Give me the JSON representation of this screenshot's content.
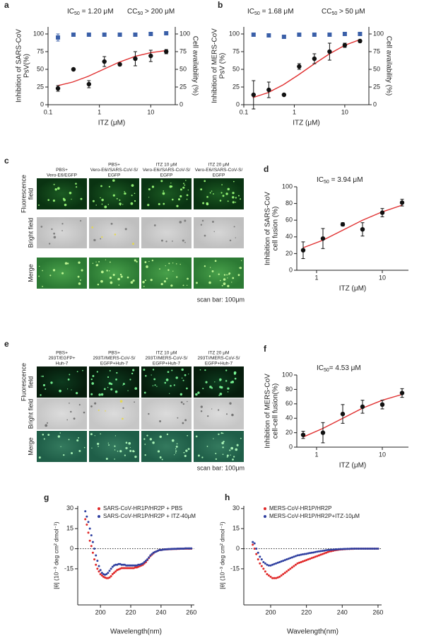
{
  "chart_data": [
    {
      "panel": "a",
      "type": "dose_response",
      "x_scale": "log",
      "annotations": [
        {
          "parts": [
            "IC",
            "50",
            " = 1.20 μM"
          ],
          "color": "#222222"
        },
        {
          "parts": [
            "CC",
            "50",
            " > 200 μM"
          ],
          "color": "#3a5fa8"
        }
      ],
      "xlabel": "ITZ (μM)",
      "ylabel": [
        "Inhibition of SARS-CoV",
        "PsV(%)"
      ],
      "ylabel_color": "#e03030",
      "y2label": [
        "Cell availability (%)"
      ],
      "y2label_color": "#3a5fa8",
      "xlim": [
        0.1,
        30
      ],
      "xticks": [
        0.1,
        1,
        10
      ],
      "ylim": [
        0,
        110
      ],
      "yticks": [
        0,
        25,
        50,
        75,
        100
      ],
      "y2lim": [
        0,
        110
      ],
      "y2ticks": [
        0,
        25,
        50,
        75,
        100
      ],
      "x": [
        0.156,
        0.3125,
        0.625,
        1.25,
        2.5,
        5,
        10,
        20
      ],
      "series": [
        {
          "color": "#111111",
          "marker": "circle",
          "values": [
            23,
            50,
            29,
            61,
            57,
            65,
            69,
            75
          ],
          "errors": [
            4,
            0,
            5,
            7,
            2,
            10,
            8,
            3
          ]
        },
        {
          "color": "#3a5fa8",
          "marker": "square",
          "axis": "y2",
          "values": [
            95,
            99,
            99,
            99,
            99,
            99,
            100,
            101
          ],
          "errors": [
            5,
            0,
            0,
            0,
            0,
            0,
            0,
            0
          ]
        }
      ],
      "fit": {
        "color": "#e03030",
        "x": [
          0.15,
          0.3,
          0.6,
          1.2,
          2.4,
          5,
          10,
          20
        ],
        "values": [
          26.7,
          32,
          40,
          50,
          60,
          68.4,
          73.6,
          76.6
        ]
      }
    },
    {
      "panel": "b",
      "type": "dose_response",
      "x_scale": "log",
      "annotations": [
        {
          "parts": [
            "IC",
            "50",
            " = 1.68 μM"
          ],
          "color": "#222222"
        },
        {
          "parts": [
            "CC",
            "50",
            " > 50 μM"
          ],
          "color": "#3a5fa8"
        }
      ],
      "xlabel": "ITZ (μM)",
      "ylabel": [
        "Inhibition of MERS-CoV",
        "PsV (%)"
      ],
      "ylabel_color": "#e03030",
      "y2label": [
        "Cell availability (%)"
      ],
      "y2label_color": "#3a5fa8",
      "xlim": [
        0.1,
        30
      ],
      "xticks": [
        0.1,
        1,
        10
      ],
      "ylim": [
        0,
        110
      ],
      "yticks": [
        0,
        25,
        50,
        75,
        100
      ],
      "y2lim": [
        0,
        110
      ],
      "y2ticks": [
        0,
        25,
        50,
        75,
        100
      ],
      "x": [
        0.156,
        0.3125,
        0.625,
        1.25,
        2.5,
        5,
        10,
        20
      ],
      "series": [
        {
          "color": "#111111",
          "marker": "circle",
          "values": [
            14,
            21,
            14,
            54,
            65,
            75,
            84,
            90
          ],
          "errors": [
            20,
            11,
            0,
            4,
            7,
            12,
            3,
            2
          ]
        },
        {
          "color": "#3a5fa8",
          "marker": "square",
          "axis": "y2",
          "values": [
            99,
            98,
            96,
            99,
            99,
            99,
            100,
            100
          ],
          "errors": [
            0,
            0,
            0,
            0,
            0,
            0,
            0,
            0
          ]
        }
      ],
      "fit": {
        "color": "#e03030",
        "x": [
          0.15,
          0.3,
          0.6,
          1.2,
          2.4,
          5,
          10,
          20
        ],
        "values": [
          10,
          17,
          28,
          42,
          57,
          72,
          84,
          92
        ]
      }
    },
    {
      "panel": "d",
      "type": "dose_response",
      "x_scale": "log",
      "annotations": [
        {
          "parts": [
            "IC",
            "50",
            " = 3.94 μM"
          ],
          "color": "#222222"
        }
      ],
      "xlabel": "ITZ (μM)",
      "ylabel": [
        "Inhibition of SARS-CoV",
        "cell fusion (%)"
      ],
      "ylabel_color": "#e03030",
      "xlim": [
        0.5,
        25
      ],
      "xticks": [
        1,
        10
      ],
      "ylim": [
        0,
        100
      ],
      "yticks": [
        0,
        20,
        40,
        60,
        80,
        100
      ],
      "x": [
        0.625,
        1.25,
        2.5,
        5,
        10,
        20
      ],
      "series": [
        {
          "color": "#111111",
          "marker": "circle",
          "values": [
            24,
            38,
            55,
            49,
            69,
            81
          ],
          "errors": [
            10,
            12,
            2,
            8,
            5,
            4
          ]
        }
      ],
      "fit": {
        "color": "#e03030",
        "x": [
          0.625,
          1.25,
          2.5,
          5,
          10,
          20
        ],
        "values": [
          27,
          36,
          48,
          60,
          70,
          78
        ]
      }
    },
    {
      "panel": "f",
      "type": "dose_response",
      "x_scale": "log",
      "annotations": [
        {
          "parts": [
            "IC",
            "50",
            "= 4.53 μM"
          ],
          "color": "#222222"
        }
      ],
      "xlabel": "ITZ (μM)",
      "ylabel": [
        "Inhibition of MERS-CoV",
        "cell-cell fusion(%)"
      ],
      "ylabel_color": "#e03030",
      "xlim": [
        0.5,
        25
      ],
      "xticks": [
        1,
        10
      ],
      "ylim": [
        0,
        100
      ],
      "yticks": [
        0,
        20,
        40,
        60,
        80,
        100
      ],
      "x": [
        0.625,
        1.25,
        2.5,
        5,
        10,
        20
      ],
      "series": [
        {
          "color": "#111111",
          "marker": "circle",
          "values": [
            17,
            20,
            46,
            56,
            59,
            75
          ],
          "errors": [
            5,
            14,
            13,
            9,
            6,
            6
          ]
        }
      ],
      "fit": {
        "color": "#e03030",
        "x": [
          0.625,
          1.25,
          2.5,
          5,
          10,
          20
        ],
        "values": [
          14,
          26,
          40,
          54,
          65,
          73
        ]
      }
    },
    {
      "panel": "g",
      "type": "scatter",
      "xlabel": "Wavelength(nm)",
      "ylabel": [
        "[θ] (10⁻³ deg cm² dmol⁻¹)"
      ],
      "xlim": [
        185,
        262
      ],
      "xticks": [
        200,
        220,
        240,
        260
      ],
      "ylim": [
        -42,
        32
      ],
      "yticks": [
        30,
        15,
        0,
        -15
      ],
      "zero_line": true,
      "legend": "upper right",
      "x": [
        190,
        191,
        192,
        193,
        194,
        195,
        196,
        197,
        198,
        199,
        200,
        201,
        202,
        203,
        204,
        205,
        206,
        207,
        208,
        209,
        210,
        211,
        212,
        213,
        214,
        215,
        216,
        217,
        218,
        219,
        220,
        221,
        222,
        223,
        224,
        225,
        226,
        227,
        228,
        229,
        230,
        231,
        232,
        233,
        234,
        235,
        236,
        237,
        238,
        239,
        240,
        241,
        242,
        243,
        244,
        245,
        246,
        247,
        248,
        249,
        250,
        251,
        252,
        253,
        254,
        255,
        256,
        257,
        258,
        259,
        260
      ],
      "series": [
        {
          "name": "SARS-CoV-HR1P/HR2P + PBS",
          "color": "#e02828",
          "values": [
            22,
            18,
            12,
            6,
            2,
            -3,
            -8,
            -12,
            -15,
            -17,
            -19,
            -20,
            -21,
            -21.5,
            -22,
            -22,
            -21.5,
            -20.5,
            -19,
            -18,
            -17,
            -16,
            -15.5,
            -15,
            -14.5,
            -14.5,
            -14.5,
            -14.5,
            -14.5,
            -14.5,
            -14.5,
            -14.5,
            -14.5,
            -14,
            -14,
            -13.5,
            -13,
            -12.5,
            -12,
            -11,
            -10,
            -8.5,
            -7,
            -5.5,
            -4.5,
            -3.5,
            -2.5,
            -2,
            -1.5,
            -1,
            -1,
            -0.8,
            -0.6,
            -0.5,
            -0.5,
            -0.4,
            -0.3,
            -0.3,
            -0.2,
            -0.2,
            -0.2,
            -0.1,
            -0.1,
            0,
            0,
            0,
            0,
            0,
            0,
            0,
            0
          ]
        },
        {
          "name": "SARS-CoV-HR1P/HR2P + ITZ-40μM",
          "color": "#3040a0",
          "values": [
            28,
            24,
            20,
            15,
            10,
            5,
            0,
            -5,
            -9,
            -13,
            -16,
            -18,
            -19,
            -19.5,
            -19,
            -18,
            -16.5,
            -15,
            -13.5,
            -12.5,
            -12,
            -12,
            -11.5,
            -11.5,
            -12,
            -12,
            -12,
            -12.5,
            -12.5,
            -12.5,
            -12.5,
            -12.5,
            -12.5,
            -12.5,
            -12.5,
            -12,
            -12,
            -11.5,
            -11,
            -10,
            -9,
            -8,
            -6.5,
            -5,
            -4,
            -3,
            -2.5,
            -2,
            -1.5,
            -1,
            -1,
            -0.8,
            -0.6,
            -0.5,
            -0.4,
            -0.3,
            -0.3,
            -0.2,
            -0.2,
            -0.1,
            -0.1,
            0,
            0,
            0,
            0,
            0,
            0.2,
            0.2,
            0.2,
            0.2,
            0.2
          ]
        }
      ]
    },
    {
      "panel": "h",
      "type": "scatter",
      "xlabel": "Wavelength(nm)",
      "ylabel": [
        "[θ] (10⁻³ deg cm² dmol⁻¹)"
      ],
      "xlim": [
        185,
        262
      ],
      "xticks": [
        200,
        220,
        240,
        260
      ],
      "ylim": [
        -42,
        32
      ],
      "yticks": [
        30,
        15,
        0,
        -15
      ],
      "zero_line": true,
      "legend": "upper right",
      "x": [
        190,
        191,
        192,
        193,
        194,
        195,
        196,
        197,
        198,
        199,
        200,
        201,
        202,
        203,
        204,
        205,
        206,
        207,
        208,
        209,
        210,
        211,
        212,
        213,
        214,
        215,
        216,
        217,
        218,
        219,
        220,
        221,
        222,
        223,
        224,
        225,
        226,
        227,
        228,
        229,
        230,
        231,
        232,
        233,
        234,
        235,
        236,
        237,
        238,
        239,
        240,
        241,
        242,
        243,
        244,
        245,
        246,
        247,
        248,
        249,
        250,
        251,
        252,
        253,
        254,
        255,
        256,
        257,
        258,
        259,
        260
      ],
      "series": [
        {
          "name": "MERS-CoV-HR1P/HR2P",
          "color": "#e02828",
          "values": [
            3,
            0,
            -4,
            -8,
            -11,
            -13,
            -15,
            -17,
            -19,
            -20,
            -21,
            -22,
            -22,
            -22,
            -21.5,
            -21,
            -20,
            -19,
            -18,
            -17,
            -16,
            -15,
            -14,
            -13,
            -12,
            -11,
            -10.5,
            -10,
            -9.5,
            -9,
            -8.5,
            -8,
            -7.5,
            -7,
            -6.5,
            -6,
            -5.5,
            -5,
            -4.5,
            -4,
            -3.5,
            -3,
            -2.5,
            -2,
            -1.8,
            -1.5,
            -1.2,
            -1,
            -0.8,
            -0.6,
            -0.5,
            -0.4,
            -0.3,
            -0.2,
            -0.2,
            -0.1,
            -0.1,
            0,
            0,
            0,
            0,
            0,
            0,
            0,
            0,
            0,
            0,
            0,
            0,
            0,
            0
          ]
        },
        {
          "name": "MERS-CoV-HR1P/HR2P+ITZ-10μM",
          "color": "#3040a0",
          "values": [
            5,
            4,
            0,
            -3,
            -6,
            -8,
            -10,
            -11,
            -12,
            -12.5,
            -12.5,
            -12,
            -11.5,
            -11,
            -10.5,
            -10,
            -9.5,
            -9,
            -8.5,
            -8,
            -7.5,
            -7,
            -6.5,
            -6,
            -5.5,
            -5,
            -4.8,
            -4.5,
            -4.2,
            -4,
            -3.8,
            -3.5,
            -3.2,
            -3,
            -2.8,
            -2.5,
            -2.2,
            -2,
            -1.8,
            -1.6,
            -1.4,
            -1.2,
            -1,
            -0.9,
            -0.8,
            -0.7,
            -0.6,
            -0.5,
            -0.4,
            -0.3,
            -0.3,
            -0.2,
            -0.2,
            -0.1,
            -0.1,
            0,
            0,
            0,
            0,
            0,
            0,
            0,
            0,
            0,
            0,
            0,
            0,
            0,
            0,
            0,
            0
          ]
        }
      ]
    }
  ],
  "image_panels": [
    {
      "panel": "c",
      "columns": [
        [
          "PBS+",
          "Vero-E6/EGFP"
        ],
        [
          "PBS+",
          "Vero-E6//SARS-CoV-S/",
          "EGFP"
        ],
        [
          "ITZ 10 μM",
          "Vero-E6//SARS-CoV-S/",
          "EGFP"
        ],
        [
          "ITZ 20 μM",
          "Vero-E6//SARS-CoV-S/",
          "EGFP"
        ]
      ],
      "rows": [
        [
          "Fluorescence",
          "field"
        ],
        [
          "Bright field"
        ],
        [
          "Merge"
        ]
      ],
      "scale_bar": "scan bar: 100μm"
    },
    {
      "panel": "e",
      "columns": [
        [
          "PBS+",
          "293T/EGFP+",
          "Huh-7"
        ],
        [
          "PBS+",
          "293T//MERS-CoV-S/",
          "EGFP+Huh-7"
        ],
        [
          "ITZ 10 μM",
          "293T//MERS-CoV-S/",
          "EGFP+Huh-7"
        ],
        [
          "ITZ 20 μM",
          "293T//MERS-CoV-S/",
          "EGFP+Huh-7"
        ]
      ],
      "rows": [
        [
          "Fluorescence",
          "field"
        ],
        [
          "Bright field"
        ],
        [
          "Merge"
        ]
      ],
      "scale_bar": "scan bar: 100μm"
    }
  ]
}
